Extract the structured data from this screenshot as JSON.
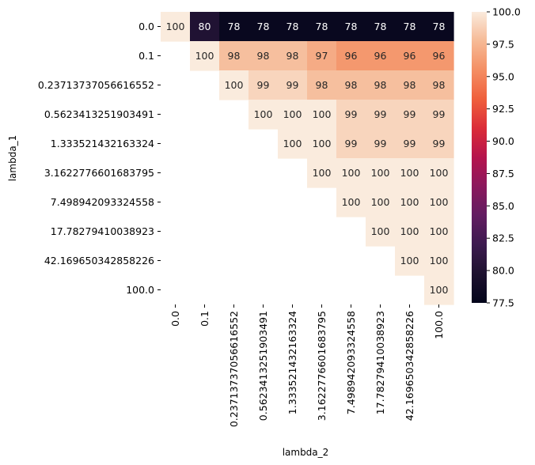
{
  "chart_data": {
    "type": "heatmap",
    "title": "",
    "xlabel": "lambda_2",
    "ylabel": "lambda_1",
    "x_categories": [
      "0.0",
      "0.1",
      "0.23713737056616552",
      "0.5623413251903491",
      "1.333521432163324",
      "3.1622776601683795",
      "7.498942093324558",
      "17.78279410038923",
      "42.169650342858226",
      "100.0"
    ],
    "y_categories": [
      "0.0",
      "0.1",
      "0.23713737056616552",
      "0.5623413251903491",
      "1.333521432163324",
      "3.1622776601683795",
      "7.498942093324558",
      "17.78279410038923",
      "42.169650342858226",
      "100.0"
    ],
    "values": [
      [
        100,
        80,
        78,
        78,
        78,
        78,
        78,
        78,
        78,
        78
      ],
      [
        null,
        100,
        98,
        98,
        98,
        97,
        96,
        96,
        96,
        96
      ],
      [
        null,
        null,
        100,
        99,
        99,
        98,
        98,
        98,
        98,
        98
      ],
      [
        null,
        null,
        null,
        100,
        100,
        100,
        99,
        99,
        99,
        99
      ],
      [
        null,
        null,
        null,
        null,
        100,
        100,
        99,
        99,
        99,
        99
      ],
      [
        null,
        null,
        null,
        null,
        null,
        100,
        100,
        100,
        100,
        100
      ],
      [
        null,
        null,
        null,
        null,
        null,
        null,
        100,
        100,
        100,
        100
      ],
      [
        null,
        null,
        null,
        null,
        null,
        null,
        null,
        100,
        100,
        100
      ],
      [
        null,
        null,
        null,
        null,
        null,
        null,
        null,
        null,
        100,
        100
      ],
      [
        null,
        null,
        null,
        null,
        null,
        null,
        null,
        null,
        null,
        100
      ]
    ],
    "colorbar": {
      "min": 77.5,
      "max": 100.0,
      "ticks": [
        "77.5",
        "80.0",
        "82.5",
        "85.0",
        "87.5",
        "90.0",
        "92.5",
        "95.0",
        "97.5",
        "100.0"
      ],
      "colormap": "rocket"
    },
    "grid": false,
    "annotations": true
  }
}
